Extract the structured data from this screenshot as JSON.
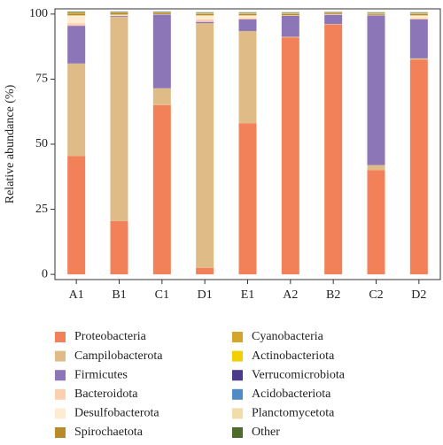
{
  "chart_data": {
    "type": "stacked_bar",
    "y_label": "Relative abundance (%)",
    "categories": [
      "A1",
      "B1",
      "C1",
      "D1",
      "E1",
      "A2",
      "B2",
      "C2",
      "D2"
    ],
    "ylim": [
      -2,
      102
    ],
    "yticks": [
      0,
      25,
      50,
      75,
      100
    ],
    "series": [
      {
        "name": "Proteobacteria",
        "color": "#f28058",
        "values": [
          45.5,
          20.5,
          65,
          2.5,
          58,
          91,
          96,
          40,
          82.5
        ]
      },
      {
        "name": "Campilobacterota",
        "color": "#dfbb88",
        "values": [
          35.5,
          78.5,
          6.5,
          94,
          35.5,
          0.3,
          0.2,
          2,
          0.5
        ]
      },
      {
        "name": "Firmicutes",
        "color": "#8d76b8",
        "values": [
          14.5,
          0.3,
          28.3,
          0.5,
          4.5,
          8,
          3.5,
          57.5,
          15
        ]
      },
      {
        "name": "Bacteroidota",
        "color": "#fbd0b0",
        "values": [
          1,
          0.2,
          0.1,
          1,
          0.5,
          0.1,
          0.1,
          0.1,
          0.5
        ]
      },
      {
        "name": "Desulfobacterota",
        "color": "#fdeccf",
        "values": [
          3,
          0.3,
          0.1,
          1.5,
          1,
          0.1,
          0.1,
          0.1,
          1
        ]
      },
      {
        "name": "Spirochaetota",
        "color": "#b88a2a",
        "values": [
          0.5,
          0.5,
          0.3,
          0.5,
          0.5,
          0.5,
          0.3,
          0.3,
          0.5
        ]
      },
      {
        "name": "Cyanobacteria",
        "color": "#d4a52a",
        "values": [
          0.3,
          0.2,
          0.2,
          0.2,
          0.2,
          0.2,
          0.2,
          0.2,
          0.2
        ]
      },
      {
        "name": "Actinobacteriota",
        "color": "#f0d000",
        "values": [
          0.2,
          0.1,
          0.1,
          0.1,
          0.1,
          0.1,
          0.1,
          0.1,
          0.1
        ]
      },
      {
        "name": "Verrucomicrobiota",
        "color": "#4b3a8a",
        "values": [
          0.1,
          0.1,
          0.1,
          0.1,
          0.1,
          0.1,
          0.1,
          0.1,
          0.1
        ]
      },
      {
        "name": "Acidobacteriota",
        "color": "#4f8bc4",
        "values": [
          0.1,
          0.1,
          0.1,
          0.1,
          0.1,
          0.1,
          0.1,
          0.1,
          0.1
        ]
      },
      {
        "name": "Planctomycetota",
        "color": "#f2dcaa",
        "values": [
          0.1,
          0.1,
          0.1,
          0.1,
          0.1,
          0.1,
          0.1,
          0.1,
          0.1
        ]
      },
      {
        "name": "Other",
        "color": "#4e6b2e",
        "values": [
          0.2,
          0.1,
          0.1,
          0.1,
          0.1,
          0.1,
          0.1,
          0.1,
          0.1
        ]
      }
    ]
  }
}
